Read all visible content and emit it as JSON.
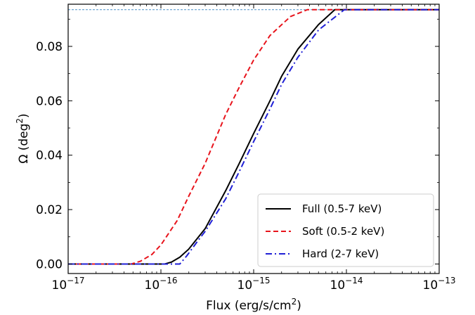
{
  "chart_data": {
    "type": "line",
    "xlabel": {
      "base": "Flux (erg/s/cm",
      "sup": "2",
      "tail": ")"
    },
    "ylabel": {
      "base": "Ω (deg",
      "sup": "2",
      "tail": ")"
    },
    "x_scale": "log",
    "xlim": [
      1e-17,
      1e-13
    ],
    "ylim": [
      -0.0035,
      0.0955
    ],
    "x_ticks": [
      {
        "value": 1e-17,
        "base": "10",
        "exp": "−17"
      },
      {
        "value": 1e-16,
        "base": "10",
        "exp": "−16"
      },
      {
        "value": 1e-15,
        "base": "10",
        "exp": "−15"
      },
      {
        "value": 1e-14,
        "base": "10",
        "exp": "−14"
      },
      {
        "value": 1e-13,
        "base": "10",
        "exp": "−13"
      }
    ],
    "y_ticks": [
      {
        "value": 0.0,
        "label": "0.00"
      },
      {
        "value": 0.02,
        "label": "0.02"
      },
      {
        "value": 0.04,
        "label": "0.04"
      },
      {
        "value": 0.06,
        "label": "0.06"
      },
      {
        "value": 0.08,
        "label": "0.08"
      }
    ],
    "grid": false,
    "legend_position": "lower-right",
    "reference_line": {
      "y": 0.0935,
      "color": "#4a90c8"
    },
    "series": [
      {
        "name": "Full (0.5-7 keV)",
        "color": "#000000",
        "dash": "solid",
        "points": [
          [
            1e-17,
            0.0
          ],
          [
            1.1e-16,
            0.0
          ],
          [
            1.3e-16,
            0.0007
          ],
          [
            1.6e-16,
            0.0025
          ],
          [
            2e-16,
            0.0055
          ],
          [
            3e-16,
            0.013
          ],
          [
            5e-16,
            0.027
          ],
          [
            7e-16,
            0.037
          ],
          [
            1e-15,
            0.048
          ],
          [
            1.5e-15,
            0.06
          ],
          [
            2e-15,
            0.069
          ],
          [
            3e-15,
            0.079
          ],
          [
            5e-15,
            0.088
          ],
          [
            7.5e-15,
            0.0935
          ],
          [
            1e-13,
            0.0935
          ]
        ]
      },
      {
        "name": "Soft (0.5-2 keV)",
        "color": "#e8141c",
        "dash": "dashed",
        "points": [
          [
            1e-17,
            0.0
          ],
          [
            4.8e-17,
            0.0
          ],
          [
            6e-17,
            0.001
          ],
          [
            8e-17,
            0.0035
          ],
          [
            1e-16,
            0.007
          ],
          [
            1.5e-16,
            0.016
          ],
          [
            2e-16,
            0.025
          ],
          [
            3e-16,
            0.037
          ],
          [
            5e-16,
            0.055
          ],
          [
            7e-16,
            0.065
          ],
          [
            1e-15,
            0.075
          ],
          [
            1.5e-15,
            0.084
          ],
          [
            2.5e-15,
            0.091
          ],
          [
            3.8e-15,
            0.0935
          ],
          [
            1e-13,
            0.0935
          ]
        ]
      },
      {
        "name": "Hard (2-7 keV)",
        "color": "#1f1fd6",
        "dash": "dashdot",
        "points": [
          [
            1e-17,
            0.0
          ],
          [
            1.6e-16,
            0.0
          ],
          [
            1.9e-16,
            0.003
          ],
          [
            2.5e-16,
            0.0085
          ],
          [
            3e-16,
            0.012
          ],
          [
            5e-16,
            0.024
          ],
          [
            7e-16,
            0.034
          ],
          [
            1e-15,
            0.045
          ],
          [
            1.5e-15,
            0.057
          ],
          [
            2e-15,
            0.066
          ],
          [
            3e-15,
            0.076
          ],
          [
            5e-15,
            0.086
          ],
          [
            9.5e-15,
            0.0935
          ],
          [
            1e-13,
            0.0935
          ]
        ]
      }
    ]
  }
}
